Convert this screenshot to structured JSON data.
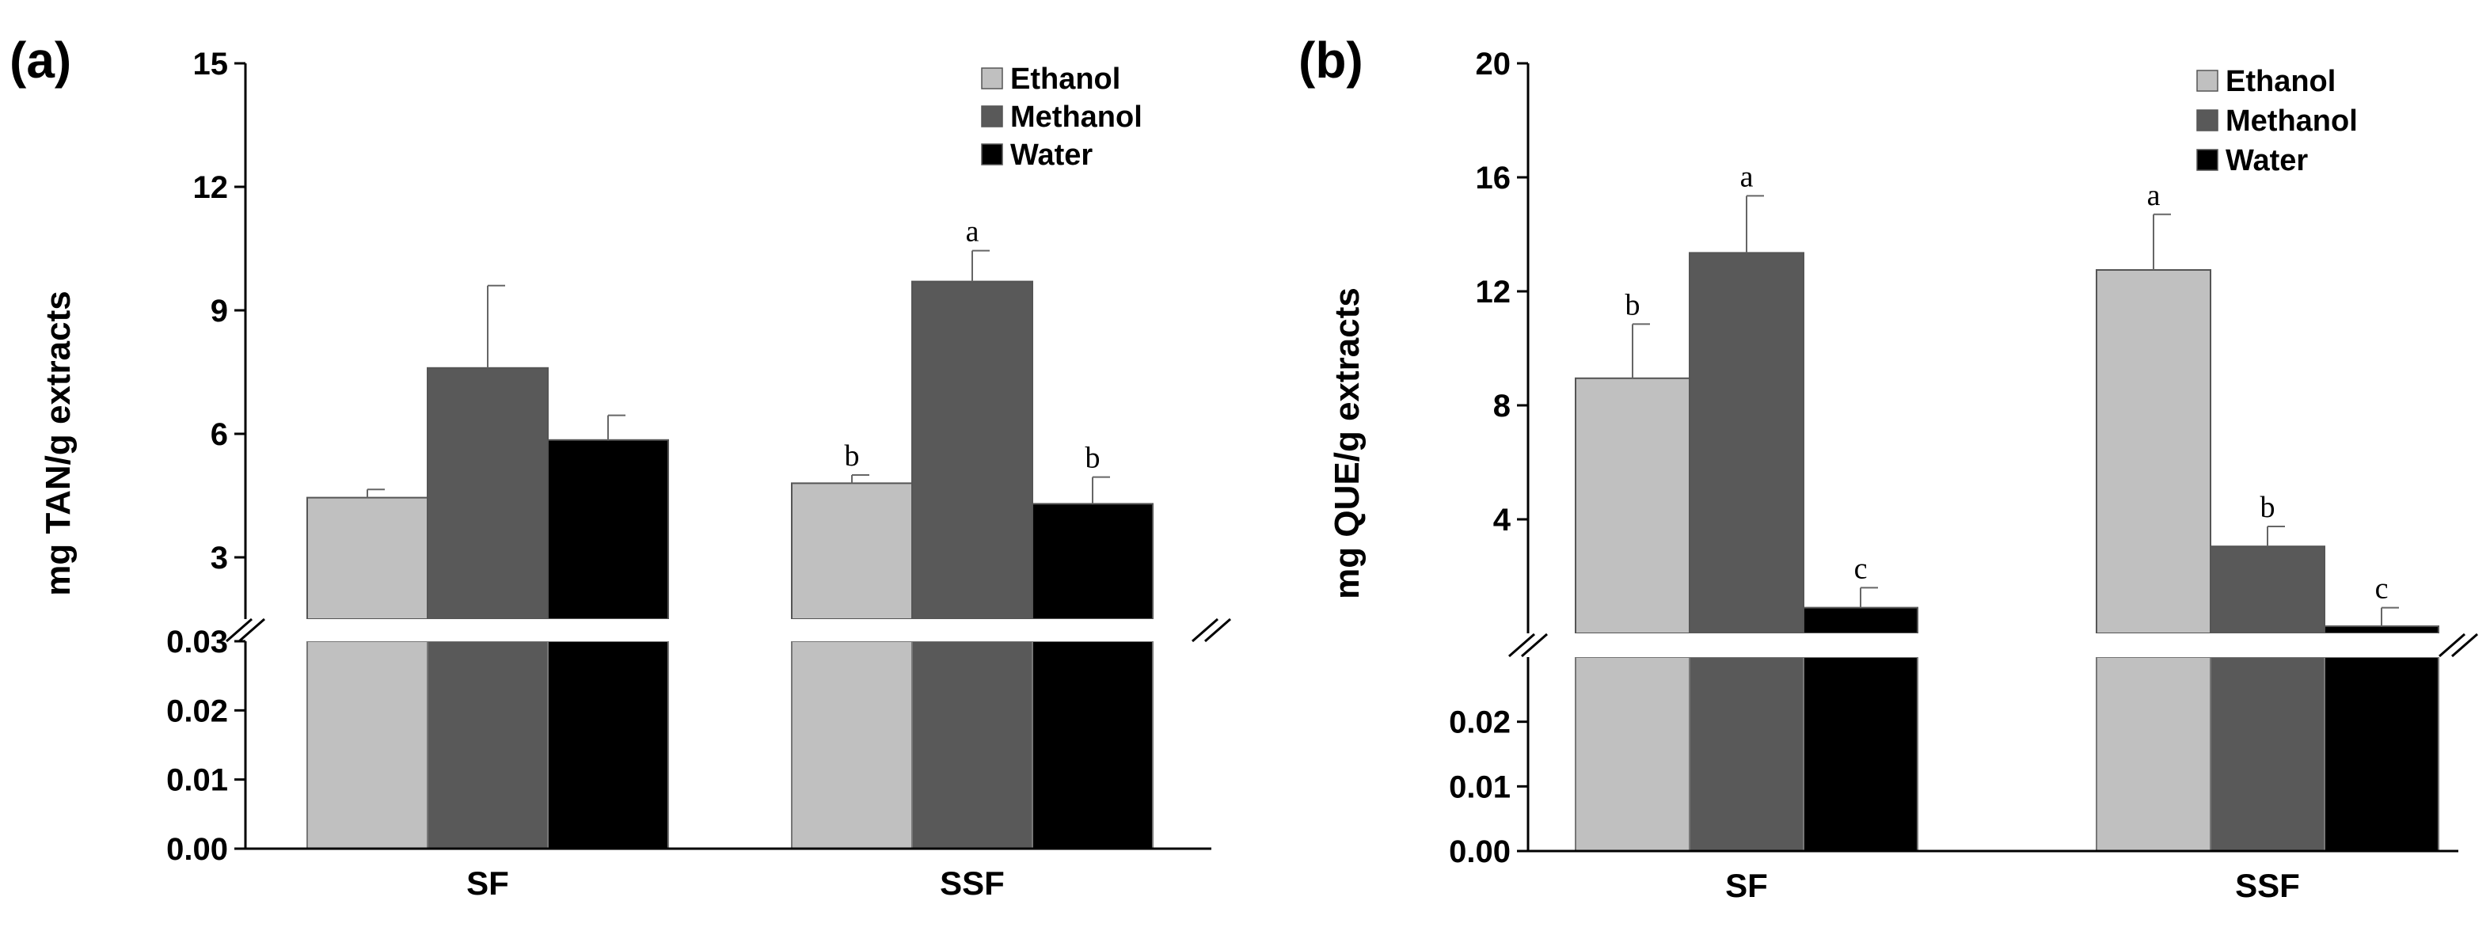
{
  "chart_data": [
    {
      "panel": "(a)",
      "type": "bar",
      "ylabel": "mg TAN/g extracts",
      "categories": [
        "SF",
        "SSF"
      ],
      "series": [
        {
          "name": "Ethanol",
          "color": "#c0c0c0",
          "values": [
            4.45,
            4.8
          ],
          "errors": [
            0.2,
            0.2
          ],
          "letters": [
            "",
            "b"
          ]
        },
        {
          "name": "Methanol",
          "color": "#595959",
          "values": [
            7.6,
            9.7
          ],
          "errors": [
            2.0,
            0.75
          ],
          "letters": [
            "",
            "a"
          ]
        },
        {
          "name": "Water",
          "color": "#000000",
          "values": [
            5.85,
            4.3
          ],
          "errors": [
            0.6,
            0.65
          ],
          "letters": [
            "",
            "b"
          ]
        }
      ],
      "axis_break": true,
      "upper_ylim": [
        1.5,
        15
      ],
      "upper_ticks": [
        "3",
        "6",
        "9",
        "12",
        "15"
      ],
      "lower_ylim": [
        0,
        0.03
      ],
      "lower_ticks": [
        "0.00",
        "0.01",
        "0.02",
        "0.03"
      ],
      "legend": "top-right"
    },
    {
      "panel": "(b)",
      "type": "bar",
      "ylabel": "mg QUE/g extracts",
      "categories": [
        "SF",
        "SSF"
      ],
      "series": [
        {
          "name": "Ethanol",
          "color": "#c0c0c0",
          "values": [
            8.95,
            12.75
          ],
          "errors": [
            1.9,
            1.95
          ],
          "letters": [
            "b",
            "a"
          ]
        },
        {
          "name": "Methanol",
          "color": "#595959",
          "values": [
            13.35,
            3.05
          ],
          "errors": [
            2.0,
            0.7
          ],
          "letters": [
            "a",
            "b"
          ]
        },
        {
          "name": "Water",
          "color": "#000000",
          "values": [
            0.9,
            0.25
          ],
          "errors": [
            0.7,
            0.65
          ],
          "letters": [
            "c",
            "c"
          ]
        }
      ],
      "axis_break": true,
      "upper_ylim": [
        0,
        20
      ],
      "upper_ticks": [
        "4",
        "8",
        "12",
        "16",
        "20"
      ],
      "lower_ylim": [
        0,
        0.03
      ],
      "lower_ticks": [
        "0.00",
        "0.01",
        "0.02"
      ],
      "legend": "top-right"
    }
  ]
}
